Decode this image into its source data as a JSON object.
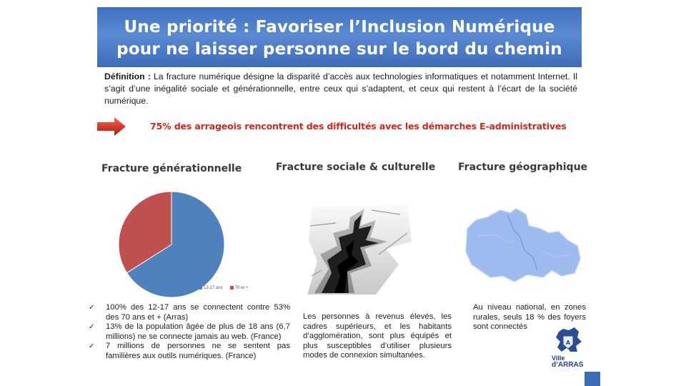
{
  "title": {
    "line1": "Une priorité : Favoriser l’Inclusion Numérique",
    "line2": "pour ne laisser personne sur le bord du chemin"
  },
  "definition": {
    "label": "Définition :",
    "text": "La fracture numérique désigne la disparité d’accès aux technologies informatiques et notamment Internet. Il s’agit d’une inégalité sociale et générationnelle, entre ceux qui s’adaptent, et ceux qui restent à l’écart de la société numérique."
  },
  "highlight": "75% des arrageois rencontrent des difficultés avec les démarches E-administratives",
  "columns": {
    "generational": "Fracture générationnelle",
    "social": "Fracture sociale & culturelle",
    "geographic": "Fracture géographique"
  },
  "chart_data": {
    "type": "pie",
    "categories": [
      "12-17 ans",
      "70 et +"
    ],
    "values": [
      66,
      34
    ],
    "colors": [
      "#4f81bd",
      "#c0504d"
    ],
    "legend": "bottom"
  },
  "bullets": [
    "100% des 12-17 ans se connectent contre 53% des 70 ans et + (Arras)",
    "13% de la population âgée de plus de 18 ans (6,7 millions) ne se connecte jamais au web. (France)",
    "7 millions de personnes ne se sentent pas familières aux outils numériques. (France)"
  ],
  "social_text": "Les personnes à revenus élevés, les cadres supérieurs, et les habitants d’agglomération, sont plus équipés et plus susceptibles d’utiliser plusieurs modes de connexion simultanées.",
  "geo_text": "Au niveau national, en zones rurales, seuls 18 % des foyers sont connectés",
  "logo": {
    "line1": "Ville",
    "line2": "d’ARRAS"
  },
  "colors": {
    "title_band": "#4a7bc8",
    "highlight": "#d0281d",
    "map_fill": "#9dbbee"
  },
  "icons": [
    "red-arrow-icon",
    "check-icon",
    "ground-crack-image",
    "nord-pas-de-calais-map",
    "arras-logo"
  ]
}
